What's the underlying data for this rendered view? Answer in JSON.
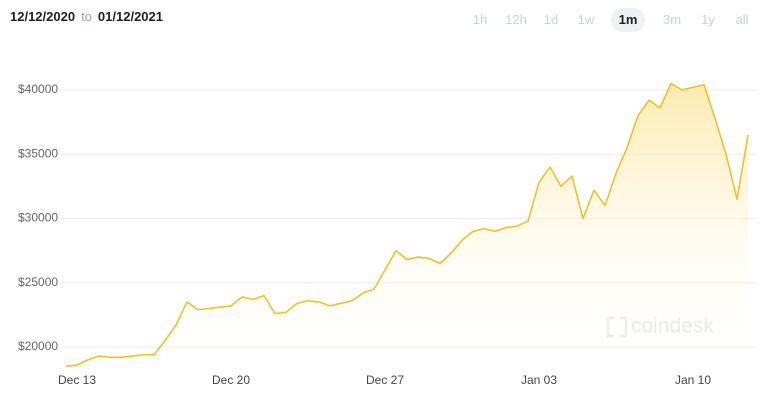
{
  "chart_data": {
    "type": "line",
    "date_from": "12/12/2020",
    "date_separator": "to",
    "date_to": "01/12/2021",
    "range_options": [
      "1h",
      "12h",
      "1d",
      "1w",
      "1m",
      "3m",
      "1y",
      "all"
    ],
    "selected_range": "1m",
    "watermark": "coindesk",
    "categories": [
      null,
      "Dec 13",
      null,
      null,
      null,
      null,
      null,
      null,
      null,
      null,
      null,
      null,
      null,
      null,
      null,
      "Dec 20",
      null,
      null,
      null,
      null,
      null,
      null,
      null,
      null,
      null,
      null,
      null,
      null,
      null,
      "Dec 27",
      null,
      null,
      null,
      null,
      null,
      null,
      null,
      null,
      null,
      null,
      null,
      null,
      null,
      "Jan 03",
      null,
      null,
      null,
      null,
      null,
      null,
      null,
      null,
      null,
      null,
      null,
      null,
      null,
      "Jan 10",
      null,
      null,
      null,
      null,
      null
    ],
    "values": [
      18500,
      18600,
      19000,
      19300,
      19200,
      19200,
      19300,
      19400,
      19400,
      20500,
      21700,
      23500,
      22900,
      23000,
      23100,
      23200,
      23900,
      23700,
      24000,
      22600,
      22700,
      23400,
      23600,
      23500,
      23200,
      23400,
      23600,
      24200,
      24500,
      26000,
      27500,
      26800,
      27000,
      26900,
      26500,
      27300,
      28300,
      29000,
      29200,
      29000,
      29300,
      29400,
      29800,
      32800,
      34000,
      32500,
      33300,
      30000,
      32200,
      31000,
      33500,
      35500,
      38000,
      39200,
      38600,
      40500,
      40000,
      40200,
      40400,
      37800,
      35000,
      31500,
      36500
    ],
    "color": "#f5bf26",
    "ylim": [
      18400,
      42300
    ],
    "yticks": [
      {
        "value": 20000,
        "label": "$20000"
      },
      {
        "value": 25000,
        "label": "$25000"
      },
      {
        "value": 30000,
        "label": "$30000"
      },
      {
        "value": 35000,
        "label": "$35000"
      },
      {
        "value": 40000,
        "label": "$40000"
      }
    ],
    "grid": true
  }
}
